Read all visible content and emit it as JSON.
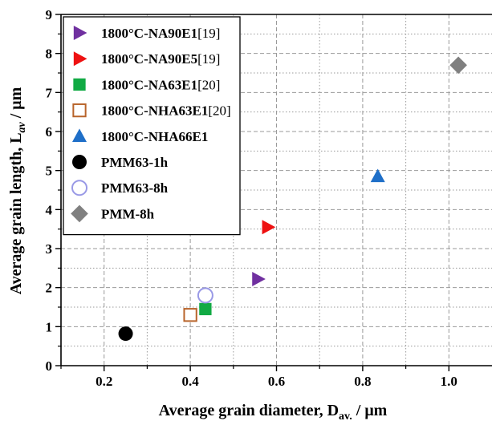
{
  "chart_data": {
    "type": "scatter",
    "xlabel": {
      "main": "Average grain diameter, D",
      "sub": "av.",
      "unit": " / μm"
    },
    "ylabel": {
      "main": "Average grain length, L",
      "sub": "av",
      "unit": " / μm"
    },
    "xlim": [
      0.1,
      1.1
    ],
    "ylim": [
      0,
      9
    ],
    "x_ticks": [
      0.2,
      0.4,
      0.6,
      0.8,
      1.0
    ],
    "x_tick_labels": [
      "0.2",
      "0.4",
      "0.6",
      "0.8",
      "1.0"
    ],
    "y_ticks": [
      0,
      1,
      2,
      3,
      4,
      5,
      6,
      7,
      8,
      9
    ],
    "y_tick_labels": [
      "0",
      "1",
      "2",
      "3",
      "4",
      "5",
      "6",
      "7",
      "8",
      "9"
    ],
    "grid": true,
    "legend_position": "top-left",
    "series": [
      {
        "name": "1800°C-NA90E1",
        "ref": "[19]",
        "marker": "triangle-right",
        "color": "#7030A0",
        "filled": true,
        "x": [
          0.557
        ],
        "y": [
          2.22
        ]
      },
      {
        "name": "1800°C-NA90E5",
        "ref": "[19]",
        "marker": "triangle-right",
        "color": "#EE1111",
        "filled": true,
        "x": [
          0.58
        ],
        "y": [
          3.55
        ]
      },
      {
        "name": "1800°C-NA63E1",
        "ref": "[20]",
        "marker": "square",
        "color": "#11AA44",
        "filled": true,
        "x": [
          0.435
        ],
        "y": [
          1.45
        ]
      },
      {
        "name": "1800°C-NHA63E1",
        "ref": "[20]",
        "marker": "square",
        "color": "#B8642B",
        "filled": false,
        "x": [
          0.4
        ],
        "y": [
          1.3
        ]
      },
      {
        "name": "1800°C-NHA66E1",
        "ref": "",
        "marker": "triangle-up",
        "color": "#1F6FC8",
        "filled": true,
        "x": [
          0.835
        ],
        "y": [
          4.85
        ]
      },
      {
        "name": "PMM63-1h",
        "ref": "",
        "marker": "circle",
        "color": "#000000",
        "filled": true,
        "x": [
          0.25
        ],
        "y": [
          0.82
        ]
      },
      {
        "name": "PMM63-8h",
        "ref": "",
        "marker": "circle",
        "color": "#9999E6",
        "filled": false,
        "x": [
          0.435
        ],
        "y": [
          1.8
        ]
      },
      {
        "name": "PMM-8h",
        "ref": "",
        "marker": "diamond",
        "color": "#808080",
        "filled": true,
        "x": [
          1.022
        ],
        "y": [
          7.7
        ]
      }
    ]
  }
}
